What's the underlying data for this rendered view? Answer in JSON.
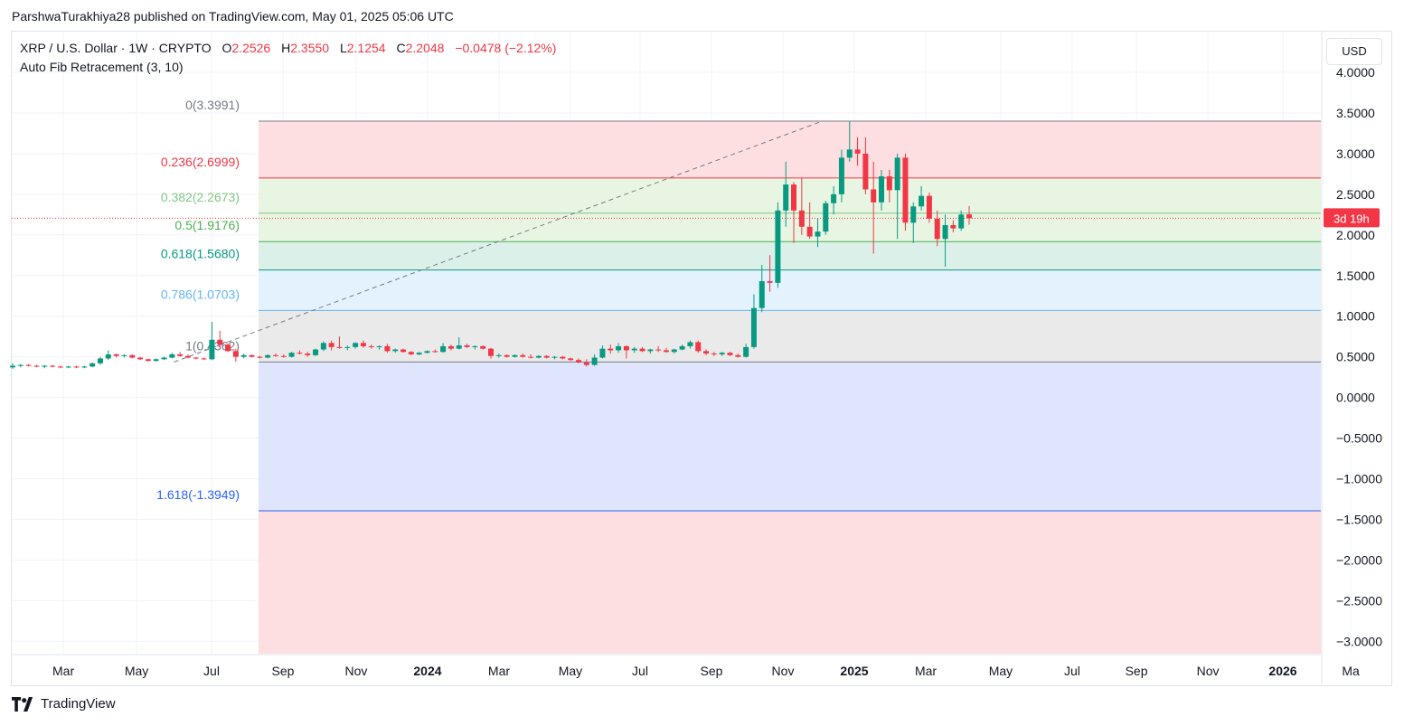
{
  "header": {
    "published_text": "ParshwaTurakhiya28 published on TradingView.com, May 01, 2025 05:06 UTC"
  },
  "legend": {
    "symbol": "XRP / U.S. Dollar · 1W · CRYPTO",
    "o_label": "O",
    "o_value": "2.2526",
    "h_label": "H",
    "h_value": "2.3550",
    "l_label": "L",
    "l_value": "2.1254",
    "c_label": "C",
    "c_value": "2.2048",
    "change": "−0.0478 (−2.12%)",
    "indicator": "Auto Fib Retracement (3, 10)"
  },
  "currency_button": "USD",
  "countdown_label": "3d 19h",
  "footer": {
    "brand": "TradingView"
  },
  "colors": {
    "up": "#089981",
    "down": "#f23645",
    "grid": "#f0f3fa",
    "axis_text": "#131722",
    "price_tag": "#f23645"
  },
  "chart_data": {
    "type": "candlestick",
    "title": "XRP / U.S. Dollar · 1W · CRYPTO",
    "ylim": [
      -3.15,
      4.2
    ],
    "y_ticks": [
      "4.0000",
      "3.5000",
      "3.0000",
      "2.5000",
      "2.0000",
      "1.5000",
      "1.0000",
      "0.5000",
      "0.0000",
      "−0.5000",
      "−1.0000",
      "−1.5000",
      "−2.0000",
      "−2.5000",
      "−3.0000"
    ],
    "y_tick_values": [
      4,
      3.5,
      3,
      2.5,
      2,
      1.5,
      1,
      0.5,
      0,
      -0.5,
      -1,
      -1.5,
      -2,
      -2.5,
      -3
    ],
    "x_ticks": [
      {
        "label": "Mar",
        "bold": false
      },
      {
        "label": "May",
        "bold": false
      },
      {
        "label": "Jul",
        "bold": false
      },
      {
        "label": "Sep",
        "bold": false
      },
      {
        "label": "Nov",
        "bold": false
      },
      {
        "label": "2024",
        "bold": true
      },
      {
        "label": "Mar",
        "bold": false
      },
      {
        "label": "May",
        "bold": false
      },
      {
        "label": "Jul",
        "bold": false
      },
      {
        "label": "Sep",
        "bold": false
      },
      {
        "label": "Nov",
        "bold": false
      },
      {
        "label": "2025",
        "bold": true
      },
      {
        "label": "Mar",
        "bold": false
      },
      {
        "label": "May",
        "bold": false
      },
      {
        "label": "Jul",
        "bold": false
      },
      {
        "label": "Sep",
        "bold": false
      },
      {
        "label": "Nov",
        "bold": false
      },
      {
        "label": "2026",
        "bold": true
      },
      {
        "label": "Ma",
        "bold": false
      }
    ],
    "x_tick_months_index": [
      -4.15,
      -2.1,
      0,
      2.0,
      4.05,
      6.05,
      8.05,
      10.05,
      12.0,
      14.0,
      16.0,
      18.0,
      20.0,
      22.1,
      24.1,
      25.9,
      27.9,
      30.0,
      31.9
    ],
    "current_price": 2.2048,
    "fib_levels": [
      {
        "ratio": "0",
        "label": "0(3.3991)",
        "value": 3.3991,
        "color": "#787b86",
        "fill": "#fddfe2"
      },
      {
        "ratio": "0.236",
        "label": "0.236(2.6999)",
        "value": 2.6999,
        "color": "#f23645",
        "fill": "#e8f5e3"
      },
      {
        "ratio": "0.382",
        "label": "0.382(2.2673)",
        "value": 2.2673,
        "color": "#81c784",
        "fill": "#e8f5e3"
      },
      {
        "ratio": "0.5",
        "label": "0.5(1.9176)",
        "value": 1.9176,
        "color": "#4caf50",
        "fill": "#dcf0ea"
      },
      {
        "ratio": "0.618",
        "label": "0.618(1.5680)",
        "value": 1.568,
        "color": "#089981",
        "fill": "#e3f2fd"
      },
      {
        "ratio": "0.786",
        "label": "0.786(1.0703)",
        "value": 1.0703,
        "color": "#64b5f6",
        "fill": "#eaeaea"
      },
      {
        "ratio": "1",
        "label": "1(0.4362)",
        "value": 0.4362,
        "color": "#787b86",
        "fill": "#dfe5fc"
      },
      {
        "ratio": "1.618",
        "label": "1.618(-1.3949)",
        "value": -1.3949,
        "color": "#2962ff",
        "fill": "#fddfe2"
      }
    ],
    "trend_from": {
      "month_index": -1.05,
      "value": 0.4362
    },
    "trend_to": {
      "month_index": 17.1,
      "value": 3.3991
    },
    "candles": [
      {
        "o": 0.37,
        "h": 0.42,
        "l": 0.35,
        "c": 0.39
      },
      {
        "o": 0.39,
        "h": 0.41,
        "l": 0.37,
        "c": 0.4
      },
      {
        "o": 0.4,
        "h": 0.41,
        "l": 0.38,
        "c": 0.39
      },
      {
        "o": 0.39,
        "h": 0.4,
        "l": 0.37,
        "c": 0.38
      },
      {
        "o": 0.38,
        "h": 0.4,
        "l": 0.36,
        "c": 0.39
      },
      {
        "o": 0.39,
        "h": 0.4,
        "l": 0.37,
        "c": 0.38
      },
      {
        "o": 0.38,
        "h": 0.39,
        "l": 0.36,
        "c": 0.37
      },
      {
        "o": 0.37,
        "h": 0.39,
        "l": 0.36,
        "c": 0.38
      },
      {
        "o": 0.38,
        "h": 0.39,
        "l": 0.36,
        "c": 0.37
      },
      {
        "o": 0.37,
        "h": 0.39,
        "l": 0.36,
        "c": 0.38
      },
      {
        "o": 0.38,
        "h": 0.43,
        "l": 0.37,
        "c": 0.42
      },
      {
        "o": 0.42,
        "h": 0.5,
        "l": 0.4,
        "c": 0.48
      },
      {
        "o": 0.48,
        "h": 0.58,
        "l": 0.46,
        "c": 0.53
      },
      {
        "o": 0.53,
        "h": 0.54,
        "l": 0.49,
        "c": 0.51
      },
      {
        "o": 0.51,
        "h": 0.53,
        "l": 0.49,
        "c": 0.52
      },
      {
        "o": 0.52,
        "h": 0.53,
        "l": 0.48,
        "c": 0.49
      },
      {
        "o": 0.49,
        "h": 0.5,
        "l": 0.46,
        "c": 0.47
      },
      {
        "o": 0.47,
        "h": 0.48,
        "l": 0.44,
        "c": 0.45
      },
      {
        "o": 0.45,
        "h": 0.48,
        "l": 0.44,
        "c": 0.47
      },
      {
        "o": 0.47,
        "h": 0.5,
        "l": 0.46,
        "c": 0.49
      },
      {
        "o": 0.49,
        "h": 0.55,
        "l": 0.48,
        "c": 0.53
      },
      {
        "o": 0.53,
        "h": 0.56,
        "l": 0.5,
        "c": 0.51
      },
      {
        "o": 0.51,
        "h": 0.53,
        "l": 0.48,
        "c": 0.49
      },
      {
        "o": 0.49,
        "h": 0.5,
        "l": 0.47,
        "c": 0.48
      },
      {
        "o": 0.48,
        "h": 0.49,
        "l": 0.46,
        "c": 0.47
      },
      {
        "o": 0.47,
        "h": 0.93,
        "l": 0.46,
        "c": 0.71
      },
      {
        "o": 0.71,
        "h": 0.82,
        "l": 0.62,
        "c": 0.65
      },
      {
        "o": 0.65,
        "h": 0.66,
        "l": 0.56,
        "c": 0.57
      },
      {
        "o": 0.57,
        "h": 0.6,
        "l": 0.44,
        "c": 0.5
      },
      {
        "o": 0.5,
        "h": 0.54,
        "l": 0.48,
        "c": 0.52
      },
      {
        "o": 0.52,
        "h": 0.53,
        "l": 0.49,
        "c": 0.5
      },
      {
        "o": 0.5,
        "h": 0.51,
        "l": 0.48,
        "c": 0.49
      },
      {
        "o": 0.49,
        "h": 0.53,
        "l": 0.48,
        "c": 0.52
      },
      {
        "o": 0.52,
        "h": 0.54,
        "l": 0.5,
        "c": 0.51
      },
      {
        "o": 0.51,
        "h": 0.53,
        "l": 0.49,
        "c": 0.5
      },
      {
        "o": 0.5,
        "h": 0.56,
        "l": 0.49,
        "c": 0.55
      },
      {
        "o": 0.55,
        "h": 0.58,
        "l": 0.53,
        "c": 0.54
      },
      {
        "o": 0.54,
        "h": 0.56,
        "l": 0.5,
        "c": 0.52
      },
      {
        "o": 0.52,
        "h": 0.6,
        "l": 0.51,
        "c": 0.59
      },
      {
        "o": 0.59,
        "h": 0.69,
        "l": 0.57,
        "c": 0.67
      },
      {
        "o": 0.67,
        "h": 0.7,
        "l": 0.58,
        "c": 0.62
      },
      {
        "o": 0.62,
        "h": 0.75,
        "l": 0.6,
        "c": 0.61
      },
      {
        "o": 0.61,
        "h": 0.64,
        "l": 0.58,
        "c": 0.62
      },
      {
        "o": 0.62,
        "h": 0.68,
        "l": 0.6,
        "c": 0.67
      },
      {
        "o": 0.67,
        "h": 0.7,
        "l": 0.61,
        "c": 0.63
      },
      {
        "o": 0.63,
        "h": 0.65,
        "l": 0.6,
        "c": 0.62
      },
      {
        "o": 0.62,
        "h": 0.64,
        "l": 0.59,
        "c": 0.63
      },
      {
        "o": 0.63,
        "h": 0.66,
        "l": 0.55,
        "c": 0.57
      },
      {
        "o": 0.57,
        "h": 0.6,
        "l": 0.55,
        "c": 0.59
      },
      {
        "o": 0.59,
        "h": 0.6,
        "l": 0.55,
        "c": 0.56
      },
      {
        "o": 0.56,
        "h": 0.57,
        "l": 0.52,
        "c": 0.53
      },
      {
        "o": 0.53,
        "h": 0.56,
        "l": 0.52,
        "c": 0.55
      },
      {
        "o": 0.55,
        "h": 0.58,
        "l": 0.54,
        "c": 0.57
      },
      {
        "o": 0.57,
        "h": 0.59,
        "l": 0.55,
        "c": 0.56
      },
      {
        "o": 0.56,
        "h": 0.67,
        "l": 0.55,
        "c": 0.63
      },
      {
        "o": 0.63,
        "h": 0.65,
        "l": 0.58,
        "c": 0.6
      },
      {
        "o": 0.6,
        "h": 0.74,
        "l": 0.59,
        "c": 0.64
      },
      {
        "o": 0.64,
        "h": 0.66,
        "l": 0.61,
        "c": 0.62
      },
      {
        "o": 0.62,
        "h": 0.64,
        "l": 0.59,
        "c": 0.63
      },
      {
        "o": 0.63,
        "h": 0.64,
        "l": 0.59,
        "c": 0.6
      },
      {
        "o": 0.6,
        "h": 0.61,
        "l": 0.48,
        "c": 0.51
      },
      {
        "o": 0.51,
        "h": 0.54,
        "l": 0.49,
        "c": 0.52
      },
      {
        "o": 0.52,
        "h": 0.53,
        "l": 0.49,
        "c": 0.5
      },
      {
        "o": 0.5,
        "h": 0.53,
        "l": 0.49,
        "c": 0.52
      },
      {
        "o": 0.52,
        "h": 0.54,
        "l": 0.49,
        "c": 0.5
      },
      {
        "o": 0.5,
        "h": 0.53,
        "l": 0.48,
        "c": 0.49
      },
      {
        "o": 0.49,
        "h": 0.52,
        "l": 0.48,
        "c": 0.51
      },
      {
        "o": 0.51,
        "h": 0.52,
        "l": 0.48,
        "c": 0.49
      },
      {
        "o": 0.49,
        "h": 0.51,
        "l": 0.47,
        "c": 0.5
      },
      {
        "o": 0.5,
        "h": 0.51,
        "l": 0.47,
        "c": 0.48
      },
      {
        "o": 0.48,
        "h": 0.49,
        "l": 0.45,
        "c": 0.46
      },
      {
        "o": 0.46,
        "h": 0.48,
        "l": 0.42,
        "c": 0.43
      },
      {
        "o": 0.43,
        "h": 0.47,
        "l": 0.38,
        "c": 0.4
      },
      {
        "o": 0.4,
        "h": 0.53,
        "l": 0.39,
        "c": 0.49
      },
      {
        "o": 0.49,
        "h": 0.64,
        "l": 0.48,
        "c": 0.6
      },
      {
        "o": 0.6,
        "h": 0.65,
        "l": 0.54,
        "c": 0.58
      },
      {
        "o": 0.58,
        "h": 0.67,
        "l": 0.55,
        "c": 0.63
      },
      {
        "o": 0.63,
        "h": 0.64,
        "l": 0.48,
        "c": 0.58
      },
      {
        "o": 0.58,
        "h": 0.62,
        "l": 0.55,
        "c": 0.6
      },
      {
        "o": 0.6,
        "h": 0.62,
        "l": 0.56,
        "c": 0.57
      },
      {
        "o": 0.57,
        "h": 0.6,
        "l": 0.54,
        "c": 0.59
      },
      {
        "o": 0.59,
        "h": 0.63,
        "l": 0.56,
        "c": 0.58
      },
      {
        "o": 0.58,
        "h": 0.61,
        "l": 0.55,
        "c": 0.56
      },
      {
        "o": 0.56,
        "h": 0.6,
        "l": 0.54,
        "c": 0.59
      },
      {
        "o": 0.59,
        "h": 0.65,
        "l": 0.58,
        "c": 0.63
      },
      {
        "o": 0.63,
        "h": 0.7,
        "l": 0.6,
        "c": 0.68
      },
      {
        "o": 0.68,
        "h": 0.7,
        "l": 0.55,
        "c": 0.57
      },
      {
        "o": 0.57,
        "h": 0.59,
        "l": 0.52,
        "c": 0.54
      },
      {
        "o": 0.54,
        "h": 0.56,
        "l": 0.51,
        "c": 0.53
      },
      {
        "o": 0.53,
        "h": 0.56,
        "l": 0.51,
        "c": 0.55
      },
      {
        "o": 0.55,
        "h": 0.56,
        "l": 0.51,
        "c": 0.52
      },
      {
        "o": 0.52,
        "h": 0.54,
        "l": 0.49,
        "c": 0.5
      },
      {
        "o": 0.5,
        "h": 0.66,
        "l": 0.49,
        "c": 0.62
      },
      {
        "o": 0.62,
        "h": 1.27,
        "l": 0.6,
        "c": 1.1
      },
      {
        "o": 1.1,
        "h": 1.63,
        "l": 1.05,
        "c": 1.43
      },
      {
        "o": 1.43,
        "h": 1.75,
        "l": 1.3,
        "c": 1.41
      },
      {
        "o": 1.41,
        "h": 2.4,
        "l": 1.35,
        "c": 2.3
      },
      {
        "o": 2.3,
        "h": 2.9,
        "l": 2.1,
        "c": 2.62
      },
      {
        "o": 2.62,
        "h": 2.65,
        "l": 1.9,
        "c": 2.3
      },
      {
        "o": 2.3,
        "h": 2.7,
        "l": 2.0,
        "c": 2.1
      },
      {
        "o": 2.1,
        "h": 2.4,
        "l": 1.95,
        "c": 1.98
      },
      {
        "o": 1.98,
        "h": 2.2,
        "l": 1.85,
        "c": 2.04
      },
      {
        "o": 2.04,
        "h": 2.42,
        "l": 2.0,
        "c": 2.39
      },
      {
        "o": 2.39,
        "h": 2.6,
        "l": 2.25,
        "c": 2.5
      },
      {
        "o": 2.5,
        "h": 3.05,
        "l": 2.4,
        "c": 2.95
      },
      {
        "o": 2.95,
        "h": 3.4,
        "l": 2.9,
        "c": 3.05
      },
      {
        "o": 3.05,
        "h": 3.2,
        "l": 2.85,
        "c": 3.0
      },
      {
        "o": 3.0,
        "h": 3.2,
        "l": 2.5,
        "c": 2.56
      },
      {
        "o": 2.56,
        "h": 2.9,
        "l": 1.77,
        "c": 2.4
      },
      {
        "o": 2.4,
        "h": 2.8,
        "l": 2.3,
        "c": 2.72
      },
      {
        "o": 2.72,
        "h": 2.8,
        "l": 2.4,
        "c": 2.55
      },
      {
        "o": 2.55,
        "h": 3.0,
        "l": 1.95,
        "c": 2.95
      },
      {
        "o": 2.95,
        "h": 3.0,
        "l": 2.05,
        "c": 2.15
      },
      {
        "o": 2.15,
        "h": 2.4,
        "l": 1.9,
        "c": 2.35
      },
      {
        "o": 2.35,
        "h": 2.6,
        "l": 2.3,
        "c": 2.48
      },
      {
        "o": 2.48,
        "h": 2.52,
        "l": 2.15,
        "c": 2.2
      },
      {
        "o": 2.2,
        "h": 2.3,
        "l": 1.86,
        "c": 1.95
      },
      {
        "o": 1.95,
        "h": 2.25,
        "l": 1.61,
        "c": 2.12
      },
      {
        "o": 2.12,
        "h": 2.18,
        "l": 2.03,
        "c": 2.08
      },
      {
        "o": 2.08,
        "h": 2.3,
        "l": 2.05,
        "c": 2.25
      },
      {
        "o": 2.2526,
        "h": 2.355,
        "l": 2.1254,
        "c": 2.2048
      }
    ]
  }
}
